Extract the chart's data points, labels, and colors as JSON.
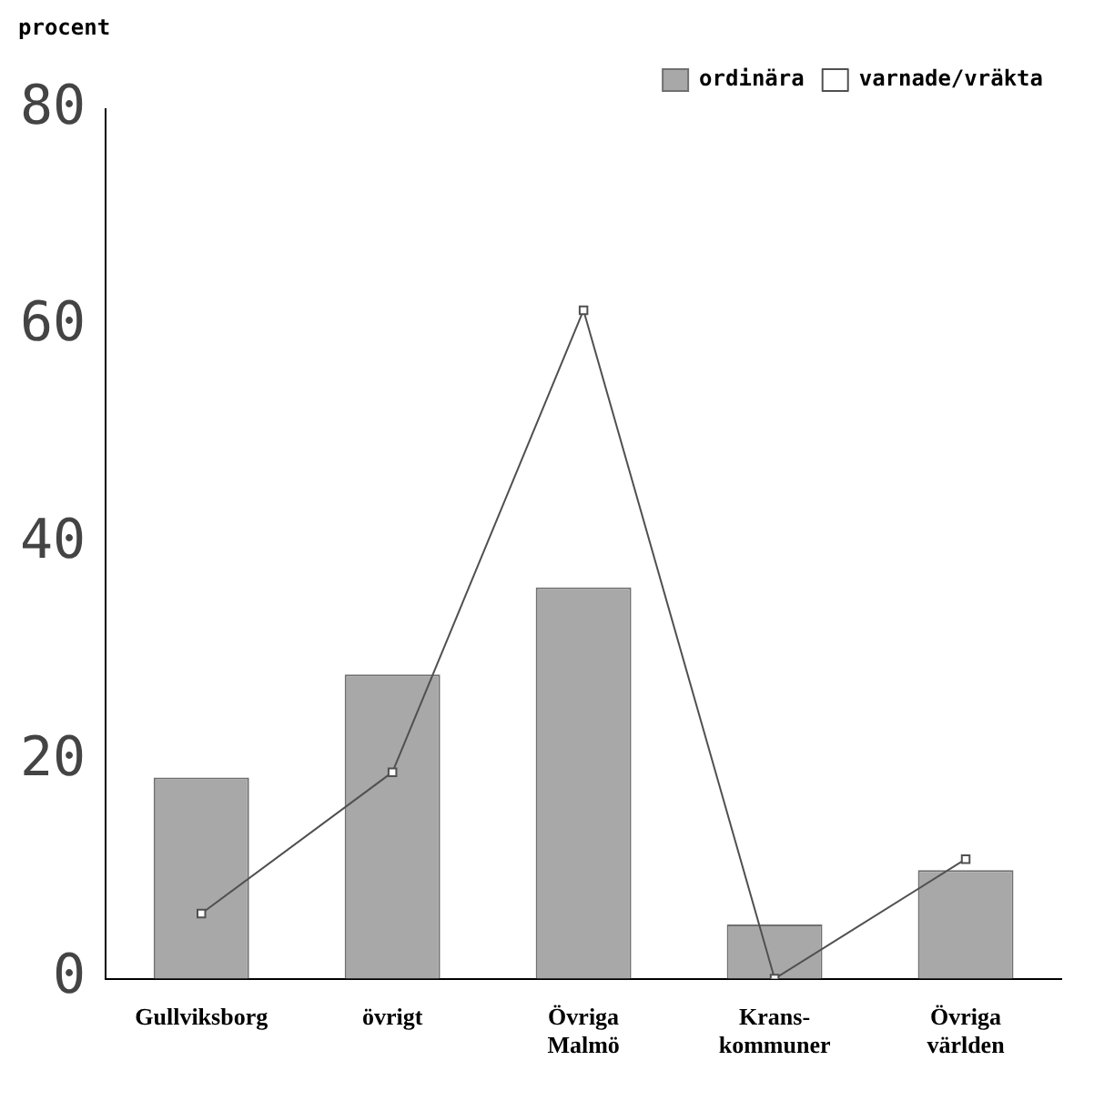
{
  "chart_data": {
    "type": "bar",
    "ylabel": "procent",
    "categories": [
      "Gullviksborg",
      "övrigt",
      "Övriga Malmö",
      "Krans-kommuner",
      "Övriga världen"
    ],
    "series": [
      {
        "name": "ordinära",
        "color": "#a8a8a8",
        "values": [
          18.5,
          28,
          36,
          5,
          10
        ]
      },
      {
        "name": "varnade/vräkta",
        "type": "line",
        "color": "#505050",
        "values": [
          6,
          19,
          61.5,
          0,
          11
        ]
      }
    ],
    "ylim": [
      0,
      80
    ],
    "yticks": [
      0,
      20,
      40,
      60,
      80
    ],
    "grid": false,
    "legend": "top right",
    "marker": "square",
    "line_style": "solid"
  }
}
